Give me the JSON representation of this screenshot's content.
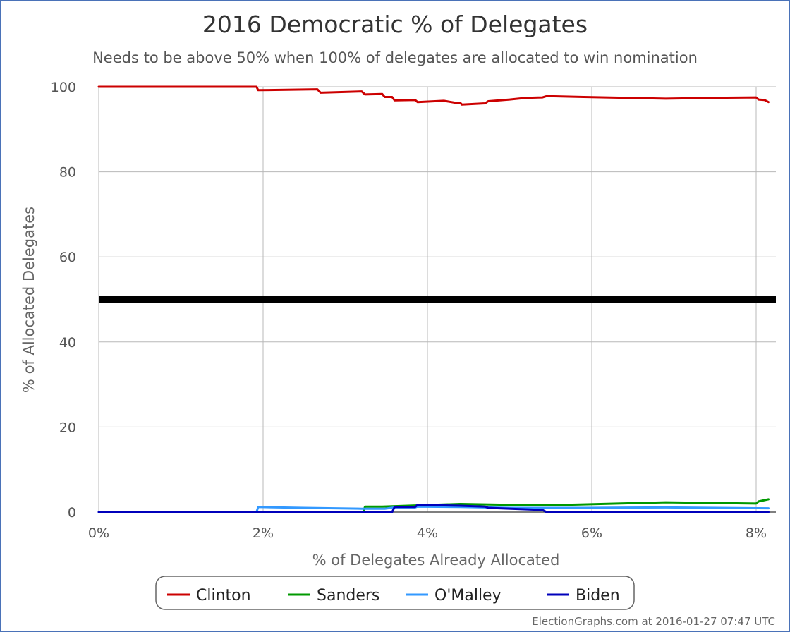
{
  "chart_data": {
    "type": "line",
    "title": "2016 Democratic % of Delegates",
    "subtitle": "Needs to be above 50% when 100% of delegates are allocated to win nomination",
    "xlabel": "% of Delegates Already Allocated",
    "ylabel": "% of Allocated Delegates",
    "xlim": [
      0,
      8.2
    ],
    "ylim": [
      0,
      100
    ],
    "x_ticks": [
      0,
      2,
      4,
      6,
      8
    ],
    "x_tick_labels": [
      "0%",
      "2%",
      "4%",
      "6%",
      "8%"
    ],
    "y_ticks": [
      0,
      20,
      40,
      60,
      80,
      100
    ],
    "y_tick_labels": [
      "0",
      "20",
      "40",
      "60",
      "80",
      "100"
    ],
    "grid": true,
    "threshold": {
      "value": 50,
      "color": "#000000"
    },
    "legend_position": "bottom-center",
    "series": [
      {
        "name": "Clinton",
        "color": "#cc0000",
        "points": [
          [
            0,
            100
          ],
          [
            1.92,
            100
          ],
          [
            1.94,
            99.2
          ],
          [
            2.66,
            99.4
          ],
          [
            2.7,
            98.6
          ],
          [
            3.2,
            98.9
          ],
          [
            3.24,
            98.2
          ],
          [
            3.45,
            98.3
          ],
          [
            3.48,
            97.6
          ],
          [
            3.57,
            97.6
          ],
          [
            3.6,
            96.8
          ],
          [
            3.85,
            96.9
          ],
          [
            3.88,
            96.4
          ],
          [
            4.2,
            96.7
          ],
          [
            4.35,
            96.2
          ],
          [
            4.4,
            96.2
          ],
          [
            4.42,
            95.8
          ],
          [
            4.7,
            96.1
          ],
          [
            4.74,
            96.6
          ],
          [
            5.0,
            97.0
          ],
          [
            5.2,
            97.4
          ],
          [
            5.4,
            97.5
          ],
          [
            5.45,
            97.8
          ],
          [
            5.9,
            97.6
          ],
          [
            6.9,
            97.2
          ],
          [
            7.5,
            97.4
          ],
          [
            8.0,
            97.5
          ],
          [
            8.03,
            97.0
          ],
          [
            8.1,
            96.9
          ],
          [
            8.15,
            96.4
          ]
        ]
      },
      {
        "name": "Sanders",
        "color": "#009900",
        "points": [
          [
            3.22,
            0
          ],
          [
            3.24,
            1.3
          ],
          [
            3.45,
            1.3
          ],
          [
            4.4,
            1.9
          ],
          [
            5.0,
            1.7
          ],
          [
            5.45,
            1.6
          ],
          [
            5.9,
            1.8
          ],
          [
            6.9,
            2.3
          ],
          [
            8.0,
            2.0
          ],
          [
            8.03,
            2.5
          ],
          [
            8.1,
            2.8
          ],
          [
            8.15,
            3.0
          ]
        ]
      },
      {
        "name": "O'Malley",
        "color": "#3399ff",
        "points": [
          [
            0,
            0
          ],
          [
            1.92,
            0
          ],
          [
            1.94,
            1.2
          ],
          [
            2.5,
            1.0
          ],
          [
            3.2,
            0.8
          ],
          [
            3.48,
            0.8
          ],
          [
            3.6,
            1.1
          ],
          [
            3.85,
            1.1
          ],
          [
            3.88,
            1.3
          ],
          [
            4.4,
            1.2
          ],
          [
            5.0,
            1.0
          ],
          [
            5.9,
            1.0
          ],
          [
            6.9,
            1.1
          ],
          [
            8.15,
            0.9
          ]
        ]
      },
      {
        "name": "Biden",
        "color": "#0000bb",
        "points": [
          [
            0,
            0
          ],
          [
            3.57,
            0
          ],
          [
            3.6,
            1.2
          ],
          [
            3.85,
            1.2
          ],
          [
            3.88,
            1.7
          ],
          [
            4.4,
            1.5
          ],
          [
            4.7,
            1.3
          ],
          [
            4.74,
            1.0
          ],
          [
            5.4,
            0.5
          ],
          [
            5.45,
            0
          ],
          [
            8.15,
            0
          ]
        ]
      }
    ]
  },
  "credit": "ElectionGraphs.com at 2016-01-27 07:47 UTC"
}
